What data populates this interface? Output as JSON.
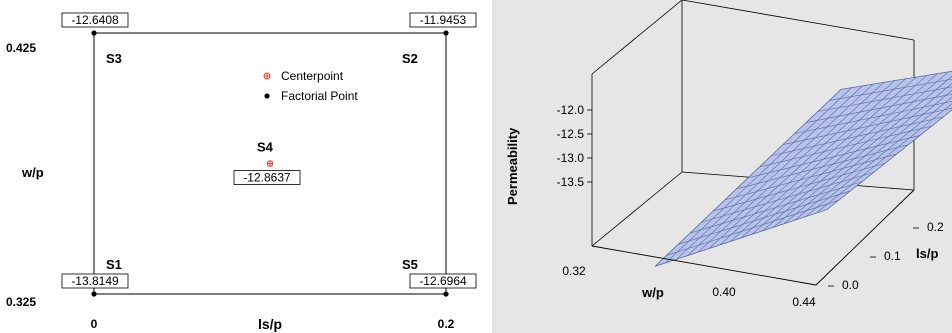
{
  "chart_data": [
    {
      "type": "scatter",
      "xlabel": "ls/p",
      "ylabel": "w/p",
      "xticks": [
        "0",
        "0.2"
      ],
      "yticks": [
        "0.425",
        "0.325"
      ],
      "xlim": [
        0,
        0.2
      ],
      "ylim": [
        0.325,
        0.425
      ],
      "legend": {
        "placement": "top-right",
        "entries": [
          {
            "label": "Centerpoint",
            "marker": "circle-plus",
            "color": "#e8412b"
          },
          {
            "label": "Factorial Point",
            "marker": "dot",
            "color": "#000000"
          }
        ]
      },
      "points": [
        {
          "name": "S1",
          "x": 0,
          "y": 0.325,
          "value": "-13.8149",
          "kind": "factorial"
        },
        {
          "name": "S2",
          "x": 0.2,
          "y": 0.425,
          "value": "-11.9453",
          "kind": "factorial"
        },
        {
          "name": "S3",
          "x": 0,
          "y": 0.425,
          "value": "-12.6408",
          "kind": "factorial"
        },
        {
          "name": "S4",
          "x": 0.1,
          "y": 0.375,
          "value": "-12.8637",
          "kind": "center"
        },
        {
          "name": "S5",
          "x": 0.2,
          "y": 0.325,
          "value": "-12.6964",
          "kind": "factorial"
        }
      ]
    },
    {
      "type": "surface",
      "xlabel": "w/p",
      "ylabel": "ls/p",
      "zlabel": "Permeability",
      "xticks": [
        "0.32",
        "0.40",
        "0.44"
      ],
      "yticks": [
        "0.0",
        "0.1",
        "0.2"
      ],
      "zticks": [
        "-12.0",
        "-12.5",
        "-13.0",
        "-13.5"
      ],
      "surface_color": "#b7c3ea",
      "grid_line_color": "#5a6c9e",
      "corners": [
        {
          "w_p": 0.325,
          "ls_p": 0.0,
          "z": -13.8149
        },
        {
          "w_p": 0.425,
          "ls_p": 0.0,
          "z": -12.6408
        },
        {
          "w_p": 0.425,
          "ls_p": 0.2,
          "z": -11.9453
        },
        {
          "w_p": 0.325,
          "ls_p": 0.2,
          "z": -12.6964
        }
      ]
    }
  ]
}
